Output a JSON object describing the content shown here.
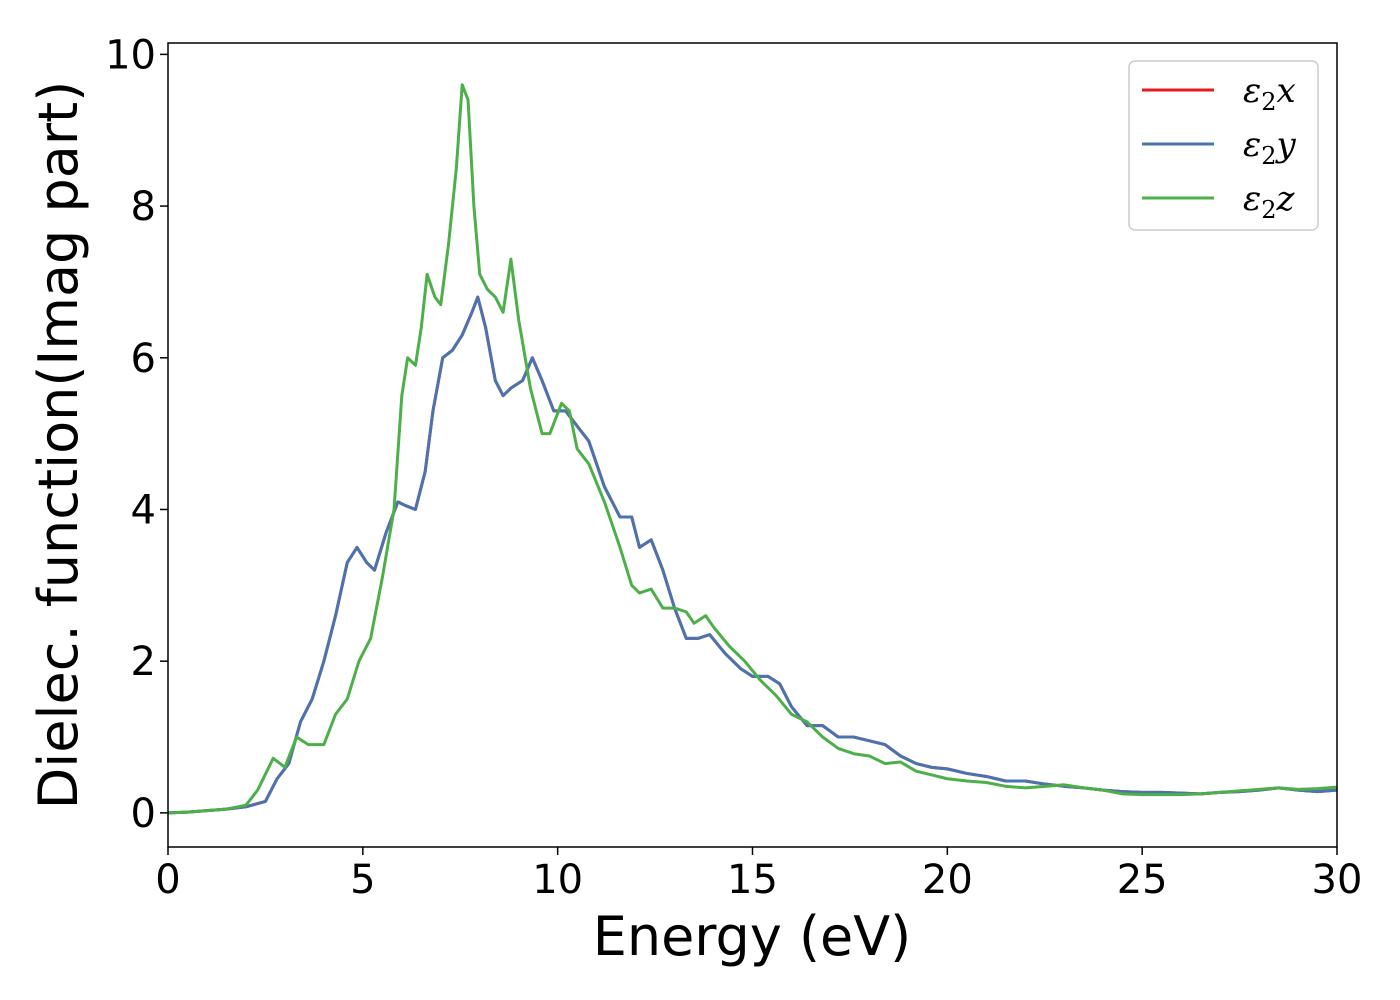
{
  "chart_data": {
    "type": "line",
    "title": "",
    "xlabel": "Energy (eV)",
    "ylabel": "Dielec. function(Imag part)",
    "xlim": [
      0,
      30
    ],
    "ylim": [
      -0.45,
      10.15
    ],
    "xticks": [
      0,
      5,
      10,
      15,
      20,
      25,
      30
    ],
    "yticks": [
      0,
      2,
      4,
      6,
      8,
      10
    ],
    "grid": false,
    "legend_position": "top-right",
    "series": [
      {
        "name_base": "ε",
        "name_sub": "2",
        "name_suffix": "x",
        "color": "#e41a1c",
        "x": [
          0,
          0.5,
          1,
          1.5,
          2,
          2.5,
          2.8,
          3.1,
          3.4,
          3.7,
          4.0,
          4.3,
          4.6,
          4.85,
          5.1,
          5.3,
          5.6,
          5.9,
          6.1,
          6.35,
          6.6,
          6.8,
          7.05,
          7.3,
          7.55,
          7.8,
          7.95,
          8.15,
          8.4,
          8.6,
          8.8,
          9.1,
          9.35,
          9.6,
          9.9,
          10.2,
          10.5,
          10.8,
          11.2,
          11.6,
          11.9,
          12.1,
          12.4,
          12.7,
          13.0,
          13.3,
          13.6,
          13.9,
          14.3,
          14.7,
          15.0,
          15.4,
          15.7,
          16.0,
          16.4,
          16.8,
          17.2,
          17.6,
          18.0,
          18.4,
          18.8,
          19.2,
          19.6,
          20.0,
          20.5,
          21.0,
          21.5,
          22.0,
          22.5,
          23.0,
          23.5,
          24.0,
          24.5,
          25.0,
          25.5,
          26.0,
          26.5,
          27.0,
          27.5,
          28.0,
          28.5,
          29.0,
          29.5,
          30.0
        ],
        "y": [
          0,
          0.01,
          0.03,
          0.05,
          0.08,
          0.15,
          0.45,
          0.65,
          1.2,
          1.5,
          2.0,
          2.6,
          3.3,
          3.5,
          3.3,
          3.2,
          3.7,
          4.1,
          4.05,
          4.0,
          4.5,
          5.3,
          6.0,
          6.1,
          6.3,
          6.6,
          6.8,
          6.4,
          5.7,
          5.5,
          5.6,
          5.7,
          6.0,
          5.7,
          5.3,
          5.3,
          5.1,
          4.9,
          4.3,
          3.9,
          3.9,
          3.5,
          3.6,
          3.2,
          2.7,
          2.3,
          2.3,
          2.35,
          2.1,
          1.9,
          1.8,
          1.8,
          1.7,
          1.4,
          1.15,
          1.15,
          1.0,
          1.0,
          0.95,
          0.9,
          0.75,
          0.65,
          0.6,
          0.58,
          0.52,
          0.48,
          0.42,
          0.42,
          0.38,
          0.35,
          0.33,
          0.3,
          0.28,
          0.27,
          0.27,
          0.26,
          0.25,
          0.27,
          0.28,
          0.3,
          0.33,
          0.3,
          0.28,
          0.3
        ]
      },
      {
        "name_base": "ε",
        "name_sub": "2",
        "name_suffix": "y",
        "color": "#4a74b0",
        "x": [
          0,
          0.5,
          1,
          1.5,
          2,
          2.5,
          2.8,
          3.1,
          3.4,
          3.7,
          4.0,
          4.3,
          4.6,
          4.85,
          5.1,
          5.3,
          5.6,
          5.9,
          6.1,
          6.35,
          6.6,
          6.8,
          7.05,
          7.3,
          7.55,
          7.8,
          7.95,
          8.15,
          8.4,
          8.6,
          8.8,
          9.1,
          9.35,
          9.6,
          9.9,
          10.2,
          10.5,
          10.8,
          11.2,
          11.6,
          11.9,
          12.1,
          12.4,
          12.7,
          13.0,
          13.3,
          13.6,
          13.9,
          14.3,
          14.7,
          15.0,
          15.4,
          15.7,
          16.0,
          16.4,
          16.8,
          17.2,
          17.6,
          18.0,
          18.4,
          18.8,
          19.2,
          19.6,
          20.0,
          20.5,
          21.0,
          21.5,
          22.0,
          22.5,
          23.0,
          23.5,
          24.0,
          24.5,
          25.0,
          25.5,
          26.0,
          26.5,
          27.0,
          27.5,
          28.0,
          28.5,
          29.0,
          29.5,
          30.0
        ],
        "y": [
          0,
          0.01,
          0.03,
          0.05,
          0.08,
          0.15,
          0.45,
          0.65,
          1.2,
          1.5,
          2.0,
          2.6,
          3.3,
          3.5,
          3.3,
          3.2,
          3.7,
          4.1,
          4.05,
          4.0,
          4.5,
          5.3,
          6.0,
          6.1,
          6.3,
          6.6,
          6.8,
          6.4,
          5.7,
          5.5,
          5.6,
          5.7,
          6.0,
          5.7,
          5.3,
          5.3,
          5.1,
          4.9,
          4.3,
          3.9,
          3.9,
          3.5,
          3.6,
          3.2,
          2.7,
          2.3,
          2.3,
          2.35,
          2.1,
          1.9,
          1.8,
          1.8,
          1.7,
          1.4,
          1.15,
          1.15,
          1.0,
          1.0,
          0.95,
          0.9,
          0.75,
          0.65,
          0.6,
          0.58,
          0.52,
          0.48,
          0.42,
          0.42,
          0.38,
          0.35,
          0.33,
          0.3,
          0.28,
          0.27,
          0.27,
          0.26,
          0.25,
          0.27,
          0.28,
          0.3,
          0.33,
          0.3,
          0.28,
          0.3
        ]
      },
      {
        "name_base": "ε",
        "name_sub": "2",
        "name_suffix": "z",
        "color": "#4daf4a",
        "x": [
          0,
          0.5,
          1,
          1.5,
          2,
          2.3,
          2.7,
          3.0,
          3.3,
          3.6,
          4.0,
          4.3,
          4.6,
          4.9,
          5.2,
          5.5,
          5.8,
          6.0,
          6.15,
          6.35,
          6.5,
          6.65,
          6.85,
          7.0,
          7.2,
          7.4,
          7.55,
          7.7,
          7.85,
          8.0,
          8.2,
          8.4,
          8.6,
          8.8,
          9.0,
          9.3,
          9.6,
          9.8,
          10.1,
          10.3,
          10.5,
          10.8,
          11.2,
          11.6,
          11.9,
          12.1,
          12.4,
          12.7,
          13.0,
          13.3,
          13.5,
          13.8,
          14.0,
          14.4,
          14.8,
          15.2,
          15.6,
          16.0,
          16.4,
          16.8,
          17.2,
          17.6,
          18.0,
          18.4,
          18.8,
          19.2,
          19.6,
          20.0,
          20.5,
          21.0,
          21.5,
          22.0,
          22.5,
          23.0,
          23.5,
          24.0,
          24.5,
          25.0,
          25.5,
          26.0,
          26.5,
          27.0,
          27.5,
          28.0,
          28.5,
          29.0,
          29.5,
          30.0
        ],
        "y": [
          0,
          0.01,
          0.03,
          0.05,
          0.1,
          0.3,
          0.72,
          0.6,
          1.0,
          0.9,
          0.9,
          1.3,
          1.5,
          2.0,
          2.3,
          3.1,
          4.0,
          5.5,
          6.0,
          5.9,
          6.4,
          7.1,
          6.8,
          6.7,
          7.5,
          8.5,
          9.6,
          9.4,
          8.0,
          7.1,
          6.9,
          6.8,
          6.6,
          7.3,
          6.5,
          5.6,
          5.0,
          5.0,
          5.4,
          5.3,
          4.8,
          4.6,
          4.1,
          3.5,
          3.0,
          2.9,
          2.95,
          2.7,
          2.7,
          2.65,
          2.5,
          2.6,
          2.45,
          2.2,
          2.0,
          1.75,
          1.55,
          1.3,
          1.2,
          1.0,
          0.85,
          0.78,
          0.75,
          0.65,
          0.67,
          0.55,
          0.5,
          0.45,
          0.42,
          0.4,
          0.35,
          0.33,
          0.35,
          0.37,
          0.33,
          0.3,
          0.25,
          0.24,
          0.24,
          0.24,
          0.25,
          0.27,
          0.29,
          0.31,
          0.33,
          0.31,
          0.32,
          0.34
        ]
      }
    ]
  }
}
